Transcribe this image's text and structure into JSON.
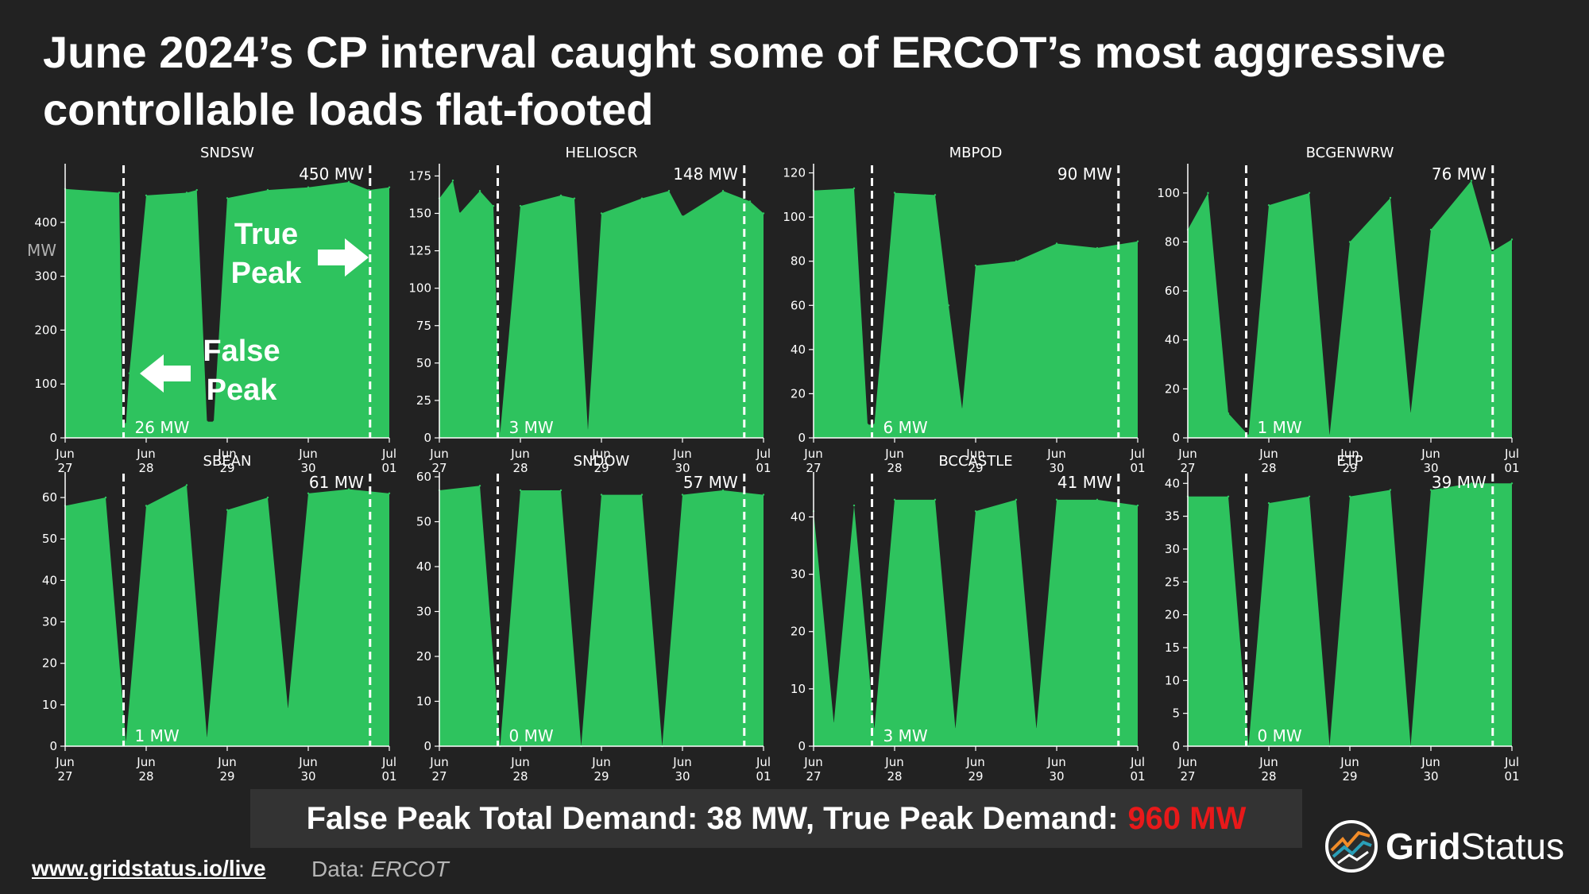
{
  "title": "June 2024’s CP interval caught some of ERCOT’s most aggressive controllable loads flat-footed",
  "colors": {
    "background": "#222222",
    "bar_fill": "#2ec35e",
    "highlight": "#e8191a",
    "summary_bg": "#333333"
  },
  "annotations": {
    "y_unit": "MW",
    "true_peak": [
      "True",
      "Peak"
    ],
    "false_peak": [
      "False",
      "Peak"
    ]
  },
  "summary": {
    "text": "False Peak Total Demand: 38 MW, True Peak Demand:",
    "highlight": "960 MW"
  },
  "footer": {
    "link": "www.gridstatus.io/live",
    "source_label": "Data:",
    "source": "ERCOT"
  },
  "brand": {
    "name_bold": "Grid",
    "name_regular": "Status"
  },
  "chart_data": [
    {
      "type": "area",
      "title": "SNDSW",
      "ylim": [
        0,
        500
      ],
      "yticks": [
        0,
        100,
        200,
        300,
        400
      ],
      "x": [
        "Jun 27 00:00",
        "Jun 27 16:00",
        "Jun 27 17:00",
        "Jun 27 18:00",
        "Jun 27 19:00",
        "Jun 28 00:00",
        "Jun 28 12:00",
        "Jun 28 15:00",
        "Jun 28 18:00",
        "Jun 28 20:00",
        "Jun 29 00:00",
        "Jun 29 12:00",
        "Jun 30 00:00",
        "Jun 30 12:00",
        "Jun 30 18:00",
        "Jul 01 00:00"
      ],
      "y": [
        462,
        455,
        30,
        26,
        120,
        450,
        455,
        460,
        30,
        30,
        445,
        460,
        465,
        475,
        460,
        465
      ],
      "xticks": [
        [
          "Jun",
          "27"
        ],
        [
          "Jun",
          "28"
        ],
        [
          "Jun",
          "29"
        ],
        [
          "Jun",
          "30"
        ],
        [
          "Jul",
          "01"
        ]
      ],
      "false_peak_label": "26 MW",
      "true_peak_label": "450 MW"
    },
    {
      "type": "area",
      "title": "HELIOSCR",
      "ylim": [
        0,
        180
      ],
      "yticks": [
        0,
        25,
        50,
        75,
        100,
        125,
        150,
        175
      ],
      "x": [
        "Jun 27 00:00",
        "Jun 27 04:00",
        "Jun 27 06:00",
        "Jun 27 12:00",
        "Jun 27 16:00",
        "Jun 27 18:00",
        "Jun 28 00:00",
        "Jun 28 12:00",
        "Jun 28 16:00",
        "Jun 28 20:00",
        "Jun 29 00:00",
        "Jun 29 12:00",
        "Jun 29 20:00",
        "Jun 30 00:00",
        "Jun 30 12:00",
        "Jun 30 20:00",
        "Jul 01 00:00"
      ],
      "y": [
        160,
        172,
        150,
        165,
        155,
        3,
        155,
        162,
        160,
        5,
        150,
        160,
        165,
        148,
        165,
        158,
        150
      ],
      "xticks": [
        [
          "Jun",
          "27"
        ],
        [
          "Jun",
          "28"
        ],
        [
          "Jun",
          "29"
        ],
        [
          "Jun",
          "30"
        ],
        [
          "Jul",
          "01"
        ]
      ],
      "false_peak_label": "3 MW",
      "true_peak_label": "148 MW"
    },
    {
      "type": "area",
      "title": "MBPOD",
      "ylim": [
        0,
        122
      ],
      "yticks": [
        0,
        20,
        40,
        60,
        80,
        100,
        120
      ],
      "x": [
        "Jun 27 00:00",
        "Jun 27 12:00",
        "Jun 27 16:00",
        "Jun 27 18:00",
        "Jun 28 00:00",
        "Jun 28 12:00",
        "Jun 28 16:00",
        "Jun 28 20:00",
        "Jun 29 00:00",
        "Jun 29 12:00",
        "Jun 30 00:00",
        "Jun 30 12:00",
        "Jul 01 00:00"
      ],
      "y": [
        112,
        113,
        6,
        6,
        111,
        110,
        60,
        13,
        78,
        80,
        88,
        86,
        89
      ],
      "xticks": [
        [
          "Jun",
          "27"
        ],
        [
          "Jun",
          "28"
        ],
        [
          "Jun",
          "29"
        ],
        [
          "Jun",
          "30"
        ],
        [
          "Jul",
          "01"
        ]
      ],
      "false_peak_label": "6 MW",
      "true_peak_label": "90 MW"
    },
    {
      "type": "area",
      "title": "BCGENWRW",
      "ylim": [
        0,
        110
      ],
      "yticks": [
        0,
        20,
        40,
        60,
        80,
        100
      ],
      "x": [
        "Jun 27 00:00",
        "Jun 27 06:00",
        "Jun 27 12:00",
        "Jun 27 18:00",
        "Jun 28 00:00",
        "Jun 28 12:00",
        "Jun 28 18:00",
        "Jun 29 00:00",
        "Jun 29 12:00",
        "Jun 29 18:00",
        "Jun 30 00:00",
        "Jun 30 12:00",
        "Jun 30 18:00",
        "Jul 01 00:00"
      ],
      "y": [
        85,
        100,
        10,
        1,
        95,
        100,
        1,
        80,
        98,
        10,
        85,
        105,
        76,
        81
      ],
      "xticks": [
        [
          "Jun",
          "27"
        ],
        [
          "Jun",
          "28"
        ],
        [
          "Jun",
          "29"
        ],
        [
          "Jun",
          "30"
        ],
        [
          "Jul",
          "01"
        ]
      ],
      "false_peak_label": "1 MW",
      "true_peak_label": "76 MW"
    },
    {
      "type": "area",
      "title": "SBEAN",
      "ylim": [
        0,
        65
      ],
      "yticks": [
        0,
        10,
        20,
        30,
        40,
        50,
        60
      ],
      "x": [
        "Jun 27 00:00",
        "Jun 27 12:00",
        "Jun 27 18:00",
        "Jun 28 00:00",
        "Jun 28 12:00",
        "Jun 28 18:00",
        "Jun 29 00:00",
        "Jun 29 12:00",
        "Jun 29 18:00",
        "Jun 30 00:00",
        "Jun 30 12:00",
        "Jul 01 00:00"
      ],
      "y": [
        58,
        60,
        1,
        58,
        63,
        2,
        57,
        60,
        9,
        61,
        62,
        61
      ],
      "xticks": [
        [
          "Jun",
          "27"
        ],
        [
          "Jun",
          "28"
        ],
        [
          "Jun",
          "29"
        ],
        [
          "Jun",
          "30"
        ],
        [
          "Jul",
          "01"
        ]
      ],
      "false_peak_label": "1 MW",
      "true_peak_label": "61 MW"
    },
    {
      "type": "area",
      "title": "SNDOW",
      "ylim": [
        0,
        60
      ],
      "yticks": [
        0,
        10,
        20,
        30,
        40,
        50,
        60
      ],
      "x": [
        "Jun 27 00:00",
        "Jun 27 12:00",
        "Jun 27 18:00",
        "Jun 28 00:00",
        "Jun 28 12:00",
        "Jun 28 18:00",
        "Jun 29 00:00",
        "Jun 29 12:00",
        "Jun 29 18:00",
        "Jun 30 00:00",
        "Jun 30 12:00",
        "Jul 01 00:00"
      ],
      "y": [
        57,
        58,
        0,
        57,
        57,
        0,
        56,
        56,
        0,
        56,
        57,
        56
      ],
      "xticks": [
        [
          "Jun",
          "27"
        ],
        [
          "Jun",
          "28"
        ],
        [
          "Jun",
          "29"
        ],
        [
          "Jun",
          "30"
        ],
        [
          "Jul",
          "01"
        ]
      ],
      "false_peak_label": "0 MW",
      "true_peak_label": "57 MW"
    },
    {
      "type": "area",
      "title": "BCCASTLE",
      "ylim": [
        0,
        47
      ],
      "yticks": [
        0,
        10,
        20,
        30,
        40
      ],
      "x": [
        "Jun 27 00:00",
        "Jun 27 06:00",
        "Jun 27 12:00",
        "Jun 27 18:00",
        "Jun 28 00:00",
        "Jun 28 12:00",
        "Jun 28 18:00",
        "Jun 29 00:00",
        "Jun 29 12:00",
        "Jun 29 18:00",
        "Jun 30 00:00",
        "Jun 30 12:00",
        "Jul 01 00:00"
      ],
      "y": [
        41,
        4,
        42,
        3,
        43,
        43,
        3,
        41,
        43,
        3,
        43,
        43,
        42
      ],
      "xticks": [
        [
          "Jun",
          "27"
        ],
        [
          "Jun",
          "28"
        ],
        [
          "Jun",
          "29"
        ],
        [
          "Jun",
          "30"
        ],
        [
          "Jul",
          "01"
        ]
      ],
      "false_peak_label": "3 MW",
      "true_peak_label": "41 MW"
    },
    {
      "type": "area",
      "title": "ETP",
      "ylim": [
        0,
        41
      ],
      "yticks": [
        0,
        5,
        10,
        15,
        20,
        25,
        30,
        35,
        40
      ],
      "x": [
        "Jun 27 00:00",
        "Jun 27 12:00",
        "Jun 27 18:00",
        "Jun 28 00:00",
        "Jun 28 12:00",
        "Jun 28 18:00",
        "Jun 29 00:00",
        "Jun 29 12:00",
        "Jun 29 18:00",
        "Jun 30 00:00",
        "Jun 30 12:00",
        "Jul 01 00:00"
      ],
      "y": [
        38,
        38,
        0,
        37,
        38,
        0,
        38,
        39,
        0,
        39,
        40,
        40
      ],
      "xticks": [
        [
          "Jun",
          "27"
        ],
        [
          "Jun",
          "28"
        ],
        [
          "Jun",
          "29"
        ],
        [
          "Jun",
          "30"
        ],
        [
          "Jul",
          "01"
        ]
      ],
      "false_peak_label": "0 MW",
      "true_peak_label": "39 MW"
    }
  ]
}
